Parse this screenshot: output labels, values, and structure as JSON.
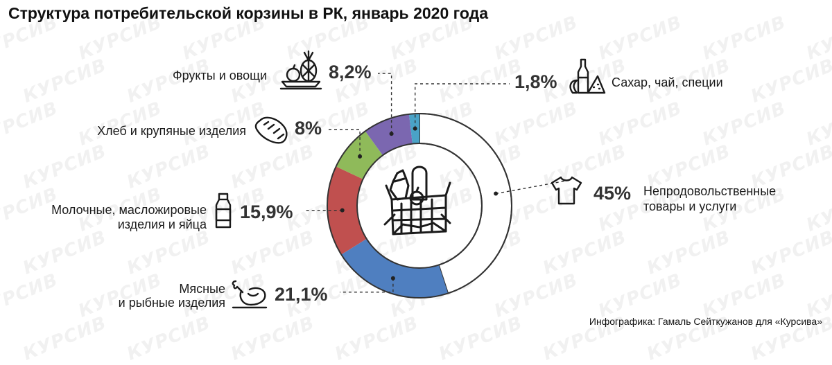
{
  "title": "Структура потребительской корзины в РК, январь 2020 года",
  "credit": "Инфографика: Гамаль Сейткужанов для «Курсива»",
  "watermark_text": "КУРСИВ",
  "colors": {
    "fruits": "#7b67b0",
    "sugar": "#4aa3c7",
    "nonfood": "#ffffff",
    "meat": "#4f7fc0",
    "dairy": "#c0504f",
    "bread": "#8fba5a",
    "outline": "#333333"
  },
  "labels": {
    "fruits": "Фрукты и овощи",
    "sugar": "Сахар, чай, специи",
    "bread": "Хлеб и крупяные изделия",
    "nonfood_1": "Непродовольственные",
    "nonfood_2": "товары и услуги",
    "dairy_1": "Молочные, масложировые",
    "dairy_2": "изделия и яйца",
    "meat_1": "Мясные",
    "meat_2": "и рыбные изделия"
  },
  "percents": {
    "fruits": "8,2%",
    "sugar": "1,8%",
    "bread": "8%",
    "nonfood": "45%",
    "dairy": "15,9%",
    "meat": "21,1%"
  },
  "chart_data": {
    "type": "pie",
    "title": "Структура потребительской корзины в РК, январь 2020 года",
    "unit": "%",
    "slices": [
      {
        "name": "Непродовольственные товары и услуги",
        "value": 45,
        "color": "#ffffff",
        "icon": "t-shirt-icon"
      },
      {
        "name": "Мясные и рыбные изделия",
        "value": 21.1,
        "color": "#4f7fc0",
        "icon": "roast-chicken-icon"
      },
      {
        "name": "Молочные, масложировые изделия и яйца",
        "value": 15.9,
        "color": "#c0504f",
        "icon": "milk-bottle-icon"
      },
      {
        "name": "Хлеб и крупяные изделия",
        "value": 8,
        "color": "#8fba5a",
        "icon": "bread-loaf-icon"
      },
      {
        "name": "Фрукты и овощи",
        "value": 8.2,
        "color": "#7b67b0",
        "icon": "fruit-bowl-icon"
      },
      {
        "name": "Сахар, чай, специи",
        "value": 1.8,
        "color": "#4aa3c7",
        "icon": "spice-bottles-icon"
      }
    ],
    "center_icon": "grocery-basket-icon"
  }
}
